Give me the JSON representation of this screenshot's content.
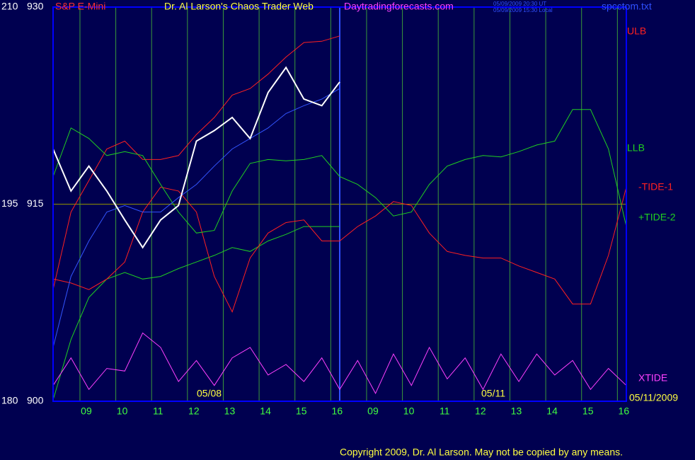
{
  "chart_data": {
    "type": "line",
    "title": "Dr. Al Larson's Chaos Trader Web",
    "instrument": "S&P E-Mini",
    "site": "Daytradingforecasts.com",
    "timestamps": [
      "05/09/2009 20:30 UT",
      "05/09/2009 15:30 Local"
    ],
    "file": "spcctom.txt",
    "dates": [
      "05/08",
      "05/11",
      "05/11/2009"
    ],
    "copyright": "Copyright 2009, Dr. Al Larson. May not be copied by any means.",
    "x": [
      -0.75,
      -0.25,
      0.25,
      0.75,
      1.25,
      1.75,
      2.25,
      2.75,
      3.25,
      3.75,
      4.25,
      4.75,
      5.25,
      5.75,
      6.25,
      6.75,
      7.25,
      7.75,
      8.25,
      8.75,
      9.25,
      9.75,
      10.25,
      10.75,
      11.25,
      11.75,
      12.25,
      12.75,
      13.25,
      13.75,
      14.25,
      14.75,
      15.25
    ],
    "xlim": [
      -0.75,
      15.25
    ],
    "xticks": [
      {
        "value": 0,
        "label": "09"
      },
      {
        "value": 1,
        "label": "10"
      },
      {
        "value": 2,
        "label": "11"
      },
      {
        "value": 3,
        "label": "12"
      },
      {
        "value": 4,
        "label": "13"
      },
      {
        "value": 5,
        "label": "14"
      },
      {
        "value": 6,
        "label": "15"
      },
      {
        "value": 7,
        "label": "16"
      },
      {
        "value": 8,
        "label": "09"
      },
      {
        "value": 9,
        "label": "10"
      },
      {
        "value": 10,
        "label": "11"
      },
      {
        "value": 11,
        "label": "12"
      },
      {
        "value": 12,
        "label": "13"
      },
      {
        "value": 13,
        "label": "14"
      },
      {
        "value": 14,
        "label": "15"
      },
      {
        "value": 15,
        "label": "16"
      }
    ],
    "ylim": [
      180,
      210
    ],
    "yticks": [
      180,
      195,
      210
    ],
    "y2lim": [
      900,
      930
    ],
    "y2ticks": [
      900,
      915,
      930
    ],
    "grid": true,
    "series": [
      {
        "name": "ULB",
        "color": "#ff2020",
        "values": [
          188.5,
          194.4,
          196.8,
          199.2,
          199.8,
          198.4,
          198.4,
          198.7,
          200.3,
          201.6,
          203.3,
          203.8,
          204.9,
          206.2,
          207.3,
          207.4,
          207.8,
          null,
          null,
          null,
          null,
          null,
          null,
          null,
          null,
          null,
          null,
          null,
          null,
          null,
          null,
          null,
          null
        ]
      },
      {
        "name": "LLB",
        "color": "#20d020",
        "values": [
          180.1,
          184.7,
          187.9,
          189.3,
          189.8,
          189.3,
          189.5,
          190.1,
          190.6,
          191.1,
          191.7,
          191.4,
          192.2,
          192.7,
          193.3,
          193.3,
          193.3,
          null,
          null,
          null,
          null,
          null,
          null,
          null,
          null,
          null,
          null,
          null,
          null,
          null,
          null,
          null,
          null
        ]
      },
      {
        "name": "-TIDE-1",
        "color": "#ff2020",
        "values": [
          189.3,
          189.0,
          188.5,
          189.3,
          190.6,
          194.4,
          196.3,
          196.0,
          194.4,
          189.5,
          186.8,
          190.9,
          192.8,
          193.6,
          193.8,
          192.2,
          192.2,
          193.3,
          194.1,
          195.2,
          194.9,
          192.8,
          191.4,
          191.1,
          190.9,
          190.9,
          190.3,
          189.8,
          189.3,
          187.4,
          187.4,
          191.1,
          196.3
        ]
      },
      {
        "name": "+TIDE-2",
        "color": "#20d020",
        "values": [
          197.1,
          200.8,
          200.0,
          198.7,
          199.0,
          198.7,
          196.5,
          194.4,
          192.8,
          193.0,
          196.0,
          198.1,
          198.4,
          198.3,
          198.4,
          198.7,
          197.1,
          196.5,
          195.5,
          194.1,
          194.4,
          196.5,
          197.9,
          198.4,
          198.7,
          198.6,
          199.0,
          199.5,
          199.8,
          202.2,
          202.2,
          199.2,
          193.3
        ]
      },
      {
        "name": "XTIDE",
        "color": "#ff40ff",
        "values": [
          181.2,
          183.3,
          180.9,
          182.5,
          182.3,
          185.2,
          184.1,
          181.5,
          183.1,
          181.2,
          183.3,
          184.1,
          182.0,
          182.8,
          181.5,
          183.3,
          180.9,
          183.1,
          180.6,
          183.6,
          181.2,
          184.1,
          181.7,
          183.3,
          180.9,
          183.6,
          181.5,
          183.6,
          182.0,
          183.1,
          180.9,
          182.5,
          181.2
        ]
      },
      {
        "color": "#3355ff",
        "values": [
          184.1,
          189.5,
          192.2,
          194.4,
          194.9,
          194.4,
          194.4,
          195.5,
          196.5,
          197.9,
          199.2,
          200.0,
          200.8,
          201.9,
          202.5,
          203.0,
          203.8,
          null,
          null,
          null,
          null,
          null,
          null,
          null,
          null,
          null,
          null,
          null,
          null,
          null,
          null,
          null,
          null
        ]
      },
      {
        "color": "#ffffff",
        "values": [
          199.2,
          196.0,
          197.9,
          196.0,
          193.8,
          191.7,
          193.8,
          194.9,
          199.8,
          200.6,
          201.6,
          200.0,
          203.5,
          205.4,
          203.0,
          202.5,
          204.3,
          null,
          null,
          null,
          null,
          null,
          null,
          null,
          null,
          null,
          null,
          null,
          null,
          null,
          null,
          null,
          null
        ]
      }
    ]
  }
}
